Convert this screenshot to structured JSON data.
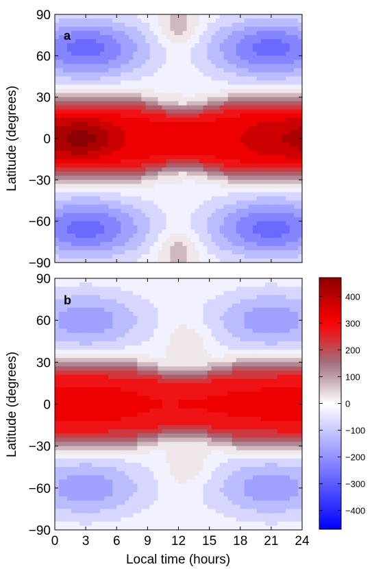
{
  "chart_data": {
    "type": "heatmap",
    "panels": [
      {
        "label": "a",
        "xlabel": "",
        "ylabel": "Latitude (degrees)",
        "xlim": [
          0,
          24
        ],
        "ylim": [
          -90,
          90
        ],
        "xticks": [
          0,
          3,
          6,
          9,
          12,
          15,
          18,
          21,
          24
        ],
        "xtick_labels": [],
        "yticks": [
          -90,
          -60,
          -30,
          0,
          30,
          60,
          90
        ],
        "ytick_labels": [
          "−90",
          "−60",
          "−30",
          "0",
          "30",
          "60",
          "90"
        ],
        "field": {
          "equatorial_amplitude": 320,
          "morning_peak": {
            "local_time": 3,
            "value": 450
          },
          "evening_peak": {
            "local_time": 22,
            "value": 390
          },
          "midlatitude_minimum": {
            "latitude": 65,
            "value": -270
          },
          "noon_anomaly": {
            "local_time": 12,
            "latitude": 82,
            "value": 100
          }
        }
      },
      {
        "label": "b",
        "xlabel": "Local time (hours)",
        "ylabel": "Latitude (degrees)",
        "xlim": [
          0,
          24
        ],
        "ylim": [
          -90,
          90
        ],
        "xticks": [
          0,
          3,
          6,
          9,
          12,
          15,
          18,
          21,
          24
        ],
        "xtick_labels": [
          "0",
          "3",
          "6",
          "9",
          "12",
          "15",
          "18",
          "21",
          "24"
        ],
        "yticks": [
          -90,
          -60,
          -30,
          0,
          30,
          60,
          90
        ],
        "ytick_labels": [
          "−90",
          "−60",
          "−30",
          "0",
          "30",
          "60",
          "90"
        ],
        "field": {
          "equatorial_amplitude": 300,
          "morning_peak": {
            "local_time": 3,
            "value": 330
          },
          "evening_peak": {
            "local_time": 22,
            "value": 310
          },
          "midlatitude_minimum": {
            "latitude": 60,
            "value": -180
          },
          "noon_anomaly": {
            "local_time": 13,
            "latitude": 45,
            "value": 60
          }
        }
      }
    ],
    "colorbar": {
      "range": [
        -470,
        470
      ],
      "ticks": [
        -400,
        -300,
        -200,
        -100,
        0,
        100,
        200,
        300,
        400
      ],
      "tick_labels": [
        "−400",
        "−300",
        "−200",
        "−100",
        "0",
        "100",
        "200",
        "300",
        "400"
      ],
      "contour_interval": 50,
      "colors": {
        "negative": "#0000ff",
        "zero": "#ffffff",
        "positive": "#ff0000",
        "peak": "#8b0000",
        "muted_positive": "#a0707f"
      }
    }
  }
}
